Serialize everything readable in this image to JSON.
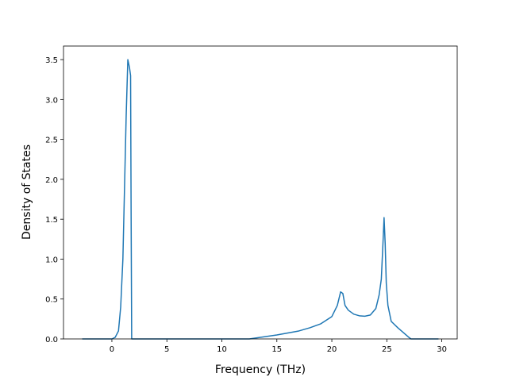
{
  "chart_data": {
    "type": "line",
    "x_label": "Frequency (THz)",
    "y_label": "Density of States",
    "x": [
      -2.7,
      0,
      0.3,
      0.6,
      0.8,
      1.0,
      1.1,
      1.3,
      1.45,
      1.6,
      1.7,
      1.75,
      1.8,
      12.5,
      13,
      15,
      17,
      18,
      19,
      20,
      20.5,
      20.8,
      21.0,
      21.2,
      21.5,
      22,
      22.5,
      23,
      23.5,
      24,
      24.3,
      24.5,
      24.65,
      24.75,
      24.85,
      24.95,
      25.1,
      25.4,
      26,
      26.5,
      27,
      27.2,
      29.7
    ],
    "series": [
      {
        "color": "#1f77b4",
        "values": [
          0,
          0,
          0.02,
          0.1,
          0.4,
          1.0,
          1.6,
          2.8,
          3.5,
          3.4,
          3.3,
          1.5,
          0,
          0,
          0.01,
          0.05,
          0.1,
          0.14,
          0.19,
          0.28,
          0.42,
          0.59,
          0.57,
          0.42,
          0.36,
          0.31,
          0.29,
          0.285,
          0.3,
          0.38,
          0.55,
          0.75,
          1.2,
          1.52,
          1.2,
          0.7,
          0.42,
          0.22,
          0.14,
          0.08,
          0.02,
          0,
          0
        ]
      }
    ],
    "xlim": [
      -4.4,
      31.4
    ],
    "ylim": [
      0,
      3.67
    ],
    "xticks": [
      0,
      5,
      10,
      15,
      20,
      25,
      30
    ],
    "yticks": [
      {
        "value": 0,
        "label": "0.0"
      },
      {
        "value": 0.5,
        "label": "0.5"
      },
      {
        "value": 1,
        "label": "1.0"
      },
      {
        "value": 1.5,
        "label": "1.5"
      },
      {
        "value": 2,
        "label": "2.0"
      },
      {
        "value": 2.5,
        "label": "2.5"
      },
      {
        "value": 3,
        "label": "3.0"
      },
      {
        "value": 3.5,
        "label": "3.5"
      }
    ],
    "grid": false
  }
}
